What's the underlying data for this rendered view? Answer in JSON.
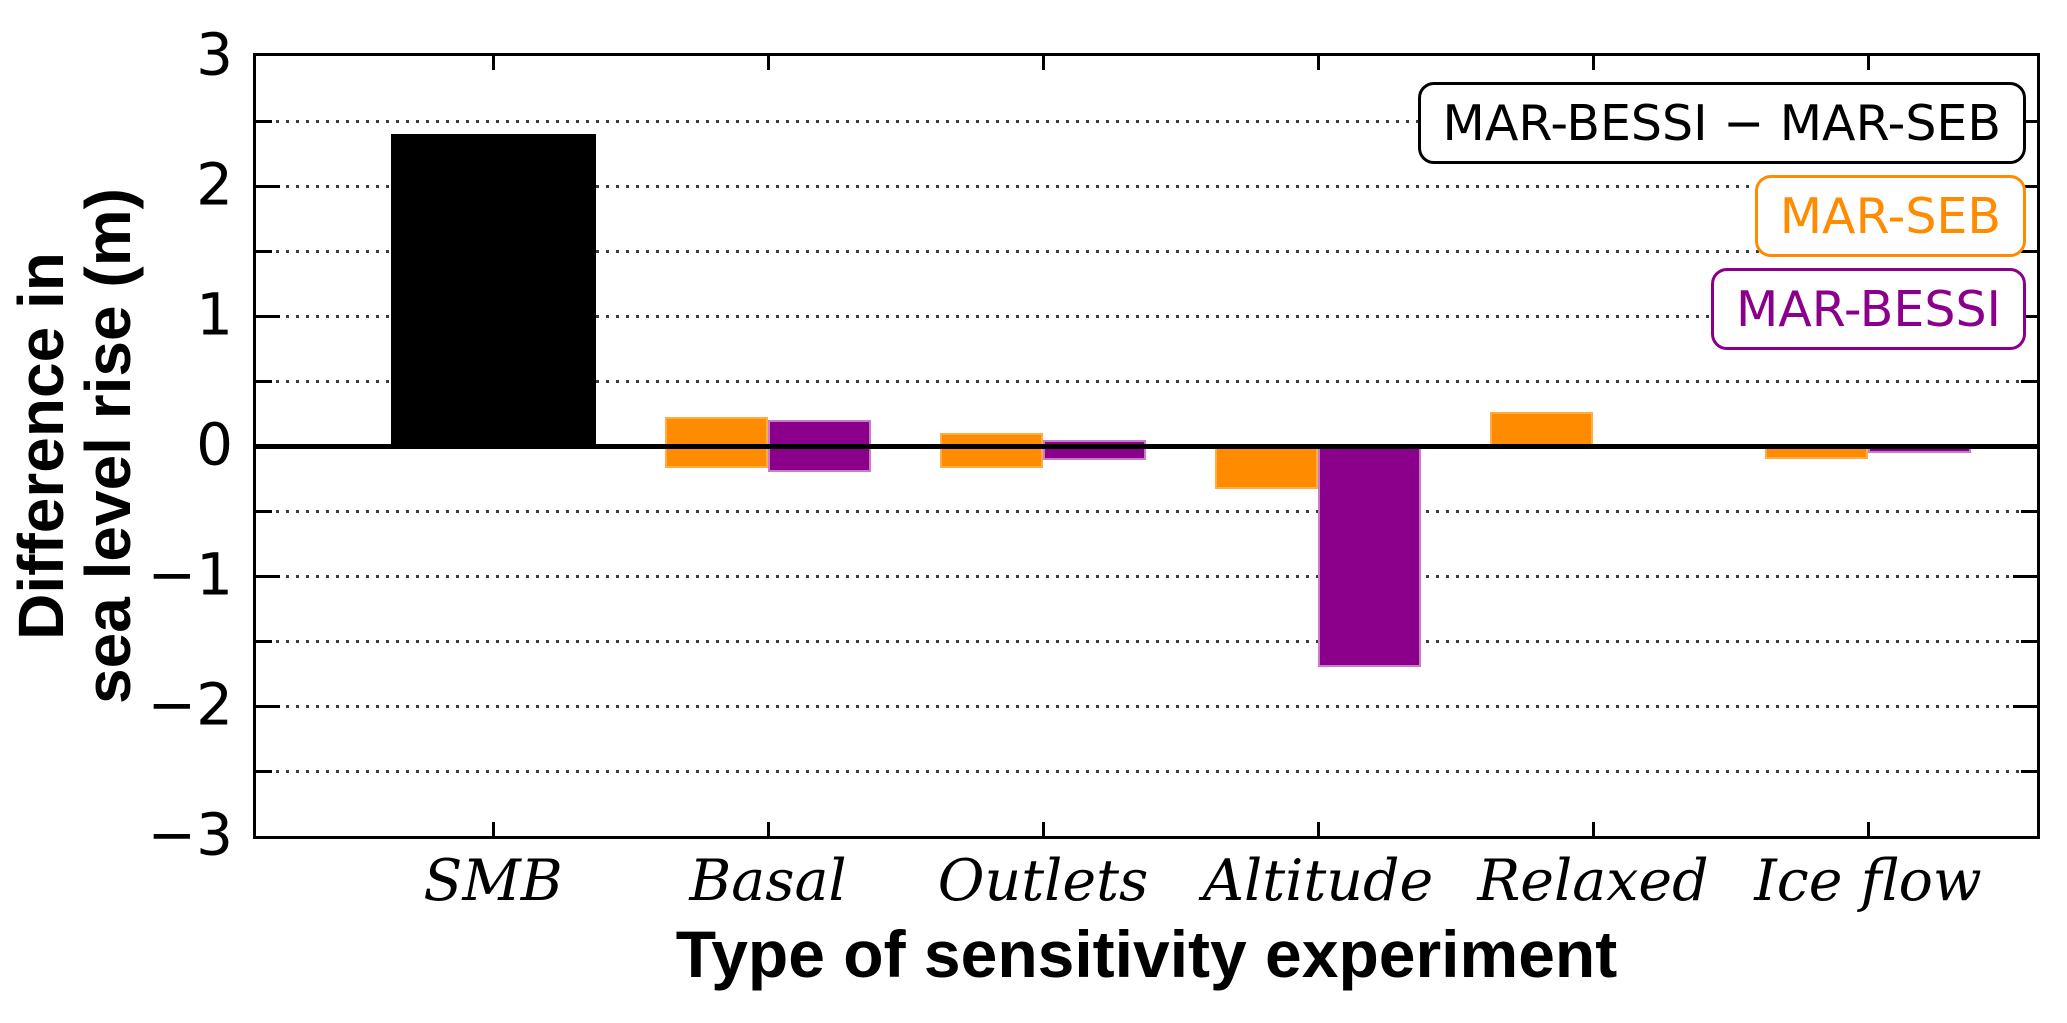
{
  "chart_data": {
    "type": "bar",
    "title": "",
    "xlabel": "Type of sensitivity experiment",
    "ylabel": "Difference in sea level rise (m)",
    "ylabel_lines": [
      "Difference in",
      "sea level rise (m)"
    ],
    "ylim": [
      -3,
      3
    ],
    "ytick_values": [
      3,
      2,
      1,
      0,
      -1,
      -2,
      -3
    ],
    "ytick_labels": [
      "3",
      "2",
      "1",
      "0",
      "−1",
      "−2",
      "−3"
    ],
    "ytick_minor_step": 0.5,
    "grid": {
      "axis": "y",
      "style": "dotted",
      "interval": 0.5,
      "exclude_zero": true
    },
    "zero_line": true,
    "categories": [
      "SMB",
      "Basal",
      "Outlets",
      "Altitude",
      "Relaxed",
      "Ice flow"
    ],
    "series": [
      {
        "name": "MAR-BESSI − MAR-SEB",
        "color": "#000000",
        "edge_color": "#000000",
        "slot": "full",
        "ranges": [
          [
            0,
            2.4
          ],
          null,
          null,
          null,
          null,
          null
        ]
      },
      {
        "name": "MAR-SEB",
        "color": "#FF8C00",
        "edge_color": "#FFAD42",
        "slot": "left",
        "ranges": [
          null,
          [
            -0.17,
            0.22
          ],
          [
            -0.17,
            0.1
          ],
          [
            -0.33,
            0
          ],
          [
            0,
            0.26
          ],
          [
            -0.1,
            0
          ]
        ]
      },
      {
        "name": "MAR-BESSI",
        "color": "#8B008B",
        "edge_color": "#C77DC7",
        "slot": "right",
        "ranges": [
          null,
          [
            -0.2,
            0.2
          ],
          [
            -0.11,
            0.05
          ],
          [
            -1.7,
            0
          ],
          null,
          [
            -0.05,
            0
          ]
        ]
      }
    ],
    "legend": {
      "position": "upper right",
      "entries": [
        {
          "label": "MAR-BESSI − MAR-SEB",
          "color": "#000000"
        },
        {
          "label": "MAR-SEB",
          "color": "#FF8C00"
        },
        {
          "label": "MAR-BESSI",
          "color": "#8B008B"
        }
      ]
    }
  }
}
